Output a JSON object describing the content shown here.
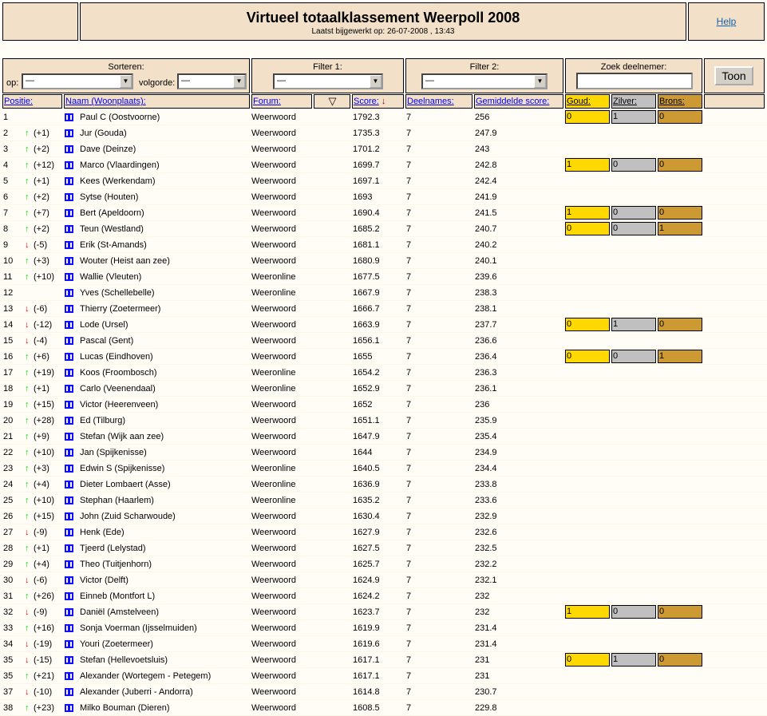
{
  "header": {
    "title": "Virtueel totaalklassement Weerpoll 2008",
    "updated": "Laatst bijgewerkt op: 26-07-2008 , 13:43",
    "help": "Help"
  },
  "filters": {
    "sort_label": "Sorteren:",
    "sort_op_label": "op:",
    "sort_op_value": "—",
    "order_label": "volgorde:",
    "order_value": "—",
    "filter1_label": "Filter 1:",
    "filter1_value": "—",
    "filter2_label": "Filter 2:",
    "filter2_value": "—",
    "search_label": "Zoek deelnemer:",
    "search_value": "",
    "show_button": "Toon"
  },
  "columns": {
    "position": "Positie:",
    "name": "Naam (Woonplaats):",
    "forum": "Forum:",
    "score": "Score:",
    "entries": "Deelnames:",
    "avg": "Gemiddelde score:",
    "gold": "Goud:",
    "silver": "Zilver:",
    "bronze": "Brons:"
  },
  "colors": {
    "gold": "#ffd800",
    "silver": "#c0c0c0",
    "bronze": "#cc9933",
    "up": "#00e000",
    "down": "#ff0000",
    "panel": "#f3e0c8"
  },
  "rows": [
    [
      "1",
      "",
      "Paul C (Oostvoorne)",
      "Weerwoord",
      "1792.3",
      "7",
      "256",
      [
        0,
        1,
        0
      ]
    ],
    [
      "2",
      "(+1)",
      "Jur (Gouda)",
      "Weerwoord",
      "1735.3",
      "7",
      "247.9",
      null
    ],
    [
      "3",
      "(+2)",
      "Dave (Deinze)",
      "Weerwoord",
      "1701.2",
      "7",
      "243",
      null
    ],
    [
      "4",
      "(+12)",
      "Marco (Vlaardingen)",
      "Weerwoord",
      "1699.7",
      "7",
      "242.8",
      [
        1,
        0,
        0
      ]
    ],
    [
      "5",
      "(+1)",
      "Kees (Werkendam)",
      "Weerwoord",
      "1697.1",
      "7",
      "242.4",
      null
    ],
    [
      "6",
      "(+2)",
      "Sytse (Houten)",
      "Weerwoord",
      "1693",
      "7",
      "241.9",
      null
    ],
    [
      "7",
      "(+7)",
      "Bert (Apeldoorn)",
      "Weerwoord",
      "1690.4",
      "7",
      "241.5",
      [
        1,
        0,
        0
      ]
    ],
    [
      "8",
      "(+2)",
      "Teun (Westland)",
      "Weerwoord",
      "1685.2",
      "7",
      "240.7",
      [
        0,
        0,
        1
      ]
    ],
    [
      "9",
      "(-5)",
      "Erik (St-Amands)",
      "Weerwoord",
      "1681.1",
      "7",
      "240.2",
      null
    ],
    [
      "10",
      "(+3)",
      "Wouter (Heist aan zee)",
      "Weerwoord",
      "1680.9",
      "7",
      "240.1",
      null
    ],
    [
      "11",
      "(+10)",
      "Wallie (Vleuten)",
      "Weeronline",
      "1677.5",
      "7",
      "239.6",
      null
    ],
    [
      "12",
      "",
      "Yves (Schellebelle)",
      "Weeronline",
      "1667.9",
      "7",
      "238.3",
      null
    ],
    [
      "13",
      "(-6)",
      "Thierry (Zoetermeer)",
      "Weerwoord",
      "1666.7",
      "7",
      "238.1",
      null
    ],
    [
      "14",
      "(-12)",
      "Lode (Ursel)",
      "Weerwoord",
      "1663.9",
      "7",
      "237.7",
      [
        0,
        1,
        0
      ]
    ],
    [
      "15",
      "(-4)",
      "Pascal (Gent)",
      "Weerwoord",
      "1656.1",
      "7",
      "236.6",
      null
    ],
    [
      "16",
      "(+6)",
      "Lucas (Eindhoven)",
      "Weerwoord",
      "1655",
      "7",
      "236.4",
      [
        0,
        0,
        1
      ]
    ],
    [
      "17",
      "(+19)",
      "Koos (Froombosch)",
      "Weeronline",
      "1654.2",
      "7",
      "236.3",
      null
    ],
    [
      "18",
      "(+1)",
      "Carlo (Veenendaal)",
      "Weeronline",
      "1652.9",
      "7",
      "236.1",
      null
    ],
    [
      "19",
      "(+15)",
      "Victor (Heerenveen)",
      "Weerwoord",
      "1652",
      "7",
      "236",
      null
    ],
    [
      "20",
      "(+28)",
      "Ed (Tilburg)",
      "Weerwoord",
      "1651.1",
      "7",
      "235.9",
      null
    ],
    [
      "21",
      "(+9)",
      "Stefan (Wijk aan zee)",
      "Weerwoord",
      "1647.9",
      "7",
      "235.4",
      null
    ],
    [
      "22",
      "(+10)",
      "Jan (Spijkenisse)",
      "Weerwoord",
      "1644",
      "7",
      "234.9",
      null
    ],
    [
      "23",
      "(+3)",
      "Edwin S (Spijkenisse)",
      "Weeronline",
      "1640.5",
      "7",
      "234.4",
      null
    ],
    [
      "24",
      "(+4)",
      "Dieter Lombaert (Asse)",
      "Weeronline",
      "1636.9",
      "7",
      "233.8",
      null
    ],
    [
      "25",
      "(+10)",
      "Stephan (Haarlem)",
      "Weeronline",
      "1635.2",
      "7",
      "233.6",
      null
    ],
    [
      "26",
      "(+15)",
      "John (Zuid Scharwoude)",
      "Weerwoord",
      "1630.4",
      "7",
      "232.9",
      null
    ],
    [
      "27",
      "(-9)",
      "Henk (Ede)",
      "Weerwoord",
      "1627.9",
      "7",
      "232.6",
      null
    ],
    [
      "28",
      "(+1)",
      "Tjeerd (Lelystad)",
      "Weerwoord",
      "1627.5",
      "7",
      "232.5",
      null
    ],
    [
      "29",
      "(+4)",
      "Theo (Tuitjenhorn)",
      "Weerwoord",
      "1625.7",
      "7",
      "232.2",
      null
    ],
    [
      "30",
      "(-6)",
      "Victor (Delft)",
      "Weerwoord",
      "1624.9",
      "7",
      "232.1",
      null
    ],
    [
      "31",
      "(+26)",
      "Einneb (Montfort L)",
      "Weerwoord",
      "1624.2",
      "7",
      "232",
      null
    ],
    [
      "32",
      "(-9)",
      "Daniël (Amstelveen)",
      "Weerwoord",
      "1623.7",
      "7",
      "232",
      [
        1,
        0,
        0
      ]
    ],
    [
      "33",
      "(+16)",
      "Sonja Voerman (Ijsselmuiden)",
      "Weerwoord",
      "1619.9",
      "7",
      "231.4",
      null
    ],
    [
      "34",
      "(-19)",
      "Youri (Zoetermeer)",
      "Weerwoord",
      "1619.6",
      "7",
      "231.4",
      null
    ],
    [
      "35",
      "(-15)",
      "Stefan (Hellevoetsluis)",
      "Weerwoord",
      "1617.1",
      "7",
      "231",
      [
        0,
        1,
        0
      ]
    ],
    [
      "35",
      "(+21)",
      "Alexander (Wortegem - Petegem)",
      "Weerwoord",
      "1617.1",
      "7",
      "231",
      null
    ],
    [
      "37",
      "(-10)",
      "Alexander (Juberri - Andorra)",
      "Weerwoord",
      "1614.8",
      "7",
      "230.7",
      null
    ],
    [
      "38",
      "(+23)",
      "Milko Bouman (Dieren)",
      "Weerwoord",
      "1608.5",
      "7",
      "229.8",
      null
    ]
  ]
}
